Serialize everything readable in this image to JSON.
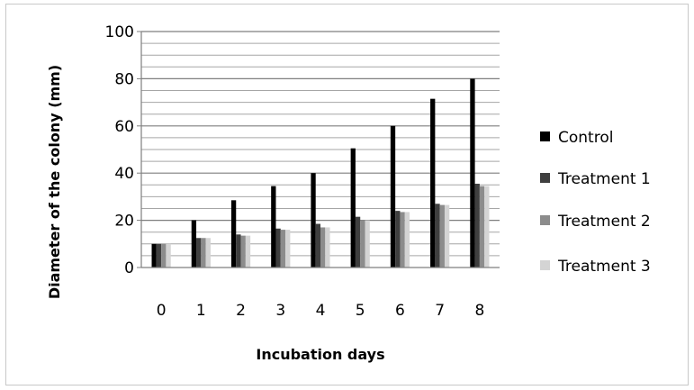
{
  "chart_data": {
    "type": "bar",
    "title": "",
    "xlabel": "Incubation days",
    "ylabel": "Diameter of the colony (mm)",
    "categories": [
      "0",
      "1",
      "2",
      "3",
      "4",
      "5",
      "6",
      "7",
      "8"
    ],
    "ylim": [
      0,
      100
    ],
    "yticks": [
      0,
      20,
      40,
      60,
      80,
      100
    ],
    "grid": true,
    "legend_position": "right",
    "series": [
      {
        "name": "Control",
        "color": "#000000",
        "values": [
          10,
          20,
          28.5,
          34.5,
          40,
          50.5,
          60,
          71.5,
          80
        ]
      },
      {
        "name": "Treatment 1",
        "color": "#3f3f3f",
        "values": [
          10,
          12.5,
          14,
          16.5,
          18.5,
          21.5,
          24,
          27,
          35.5
        ]
      },
      {
        "name": "Treatment 2",
        "color": "#8c8c8c",
        "values": [
          10,
          12.5,
          13.5,
          16,
          17,
          20,
          23.5,
          26.5,
          34.5
        ]
      },
      {
        "name": "Treatment 3",
        "color": "#d4d4d4",
        "values": [
          10,
          12.5,
          13.5,
          16,
          17,
          20,
          23.5,
          26.5,
          34.5
        ]
      }
    ]
  }
}
